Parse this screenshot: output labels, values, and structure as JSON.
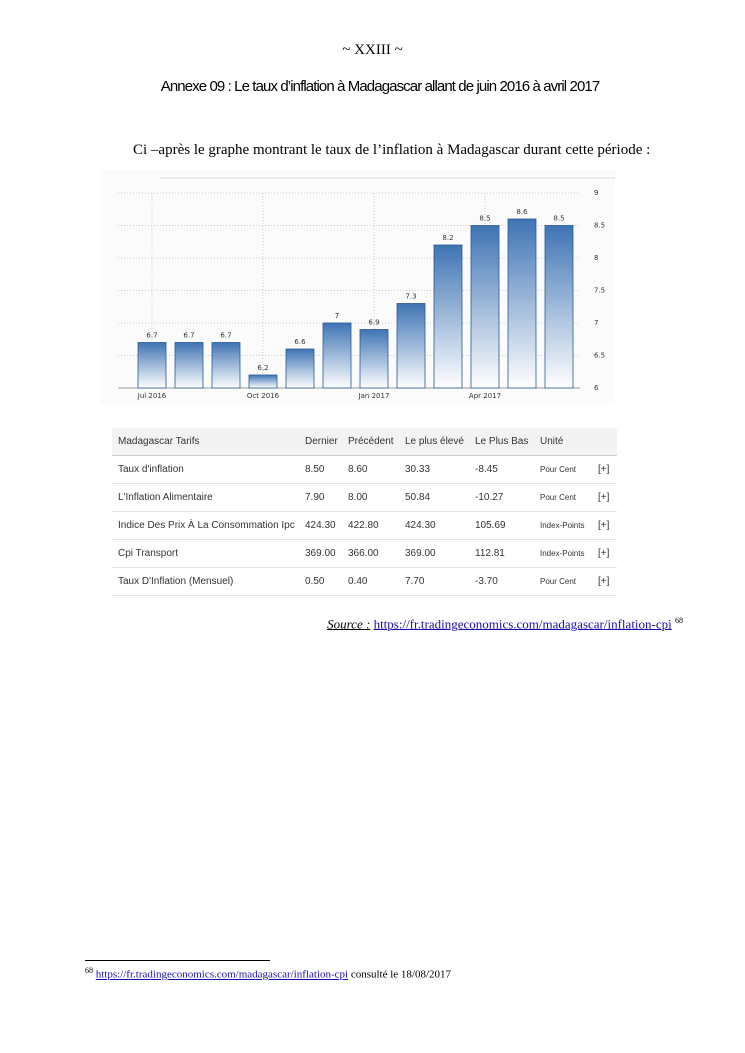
{
  "header": "~ XXIII ~",
  "title": "Annexe 09 : Le taux d’inflation à Madagascar allant de juin 2016 à avril 2017",
  "intro": "Ci –après le graphe montrant le taux de  l’inflation à Madagascar durant cette période :",
  "chart_data": {
    "type": "bar",
    "categories": [
      "Jul 2016",
      null,
      null,
      "Oct 2016",
      null,
      null,
      "Jan 2017",
      null,
      null,
      "Apr 2017",
      null,
      null
    ],
    "values": [
      6.7,
      6.7,
      6.7,
      6.2,
      6.6,
      7,
      6.9,
      7.3,
      8.2,
      8.5,
      8.6,
      8.5
    ],
    "color": "#3f74b4",
    "ylim": [
      6,
      9
    ],
    "yticks": [
      6,
      6.5,
      7,
      7.5,
      8,
      8.5,
      9
    ],
    "grid": true
  },
  "table": {
    "columns": [
      "Madagascar Tarifs",
      "Dernier",
      "Précédent",
      "Le plus élevé",
      "Le Plus Bas",
      "Unité",
      ""
    ],
    "rows": [
      [
        "Taux d'inflation",
        "8.50",
        "8.60",
        "30.33",
        "-8.45",
        "Pour Cent",
        "[+]"
      ],
      [
        "L'Inflation Alimentaire",
        "7.90",
        "8.00",
        "50.84",
        "-10.27",
        "Pour Cent",
        "[+]"
      ],
      [
        "Indice Des Prix À La Consommation Ipc",
        "424.30",
        "422.80",
        "424.30",
        "105.69",
        "Index-Points",
        "[+]"
      ],
      [
        "Cpi Transport",
        "369.00",
        "366.00",
        "369.00",
        "112.81",
        "Index-Points",
        "[+]"
      ],
      [
        "Taux D'Inflation (Mensuel)",
        "0.50",
        "0.40",
        "7.70",
        "-3.70",
        "Pour Cent",
        "[+]"
      ]
    ]
  },
  "source": {
    "label": "Source :",
    "url": "https://fr.tradingeconomics.com/madagascar/inflation-cpi",
    "note": "68"
  },
  "footnote": {
    "number": "68",
    "url": "https://fr.tradingeconomics.com/madagascar/inflation-cpi",
    "text": " consulté le 18/08/2017"
  }
}
